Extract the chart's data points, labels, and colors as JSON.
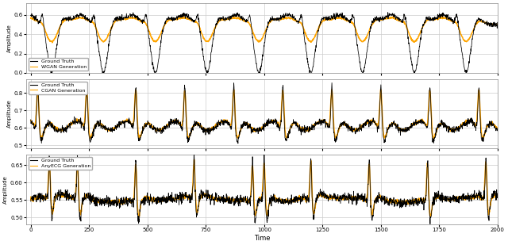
{
  "title": "",
  "xlabel": "Time",
  "ylabel": "Amplitude",
  "legend_gt": "Ground Truth",
  "legend_wgan": "WGAN Generation",
  "legend_cgan": "CGAN Generation",
  "legend_anyecg": "AnyECG Generation",
  "gt_color": "#000000",
  "gen_color": "#FFA500",
  "n_points": 2000,
  "figsize": [
    6.4,
    3.09
  ],
  "dpi": 100,
  "panel1_ylim": [
    0.0,
    0.72
  ],
  "panel2_ylim": [
    0.48,
    0.88
  ],
  "panel3_ylim": [
    0.48,
    0.68
  ]
}
